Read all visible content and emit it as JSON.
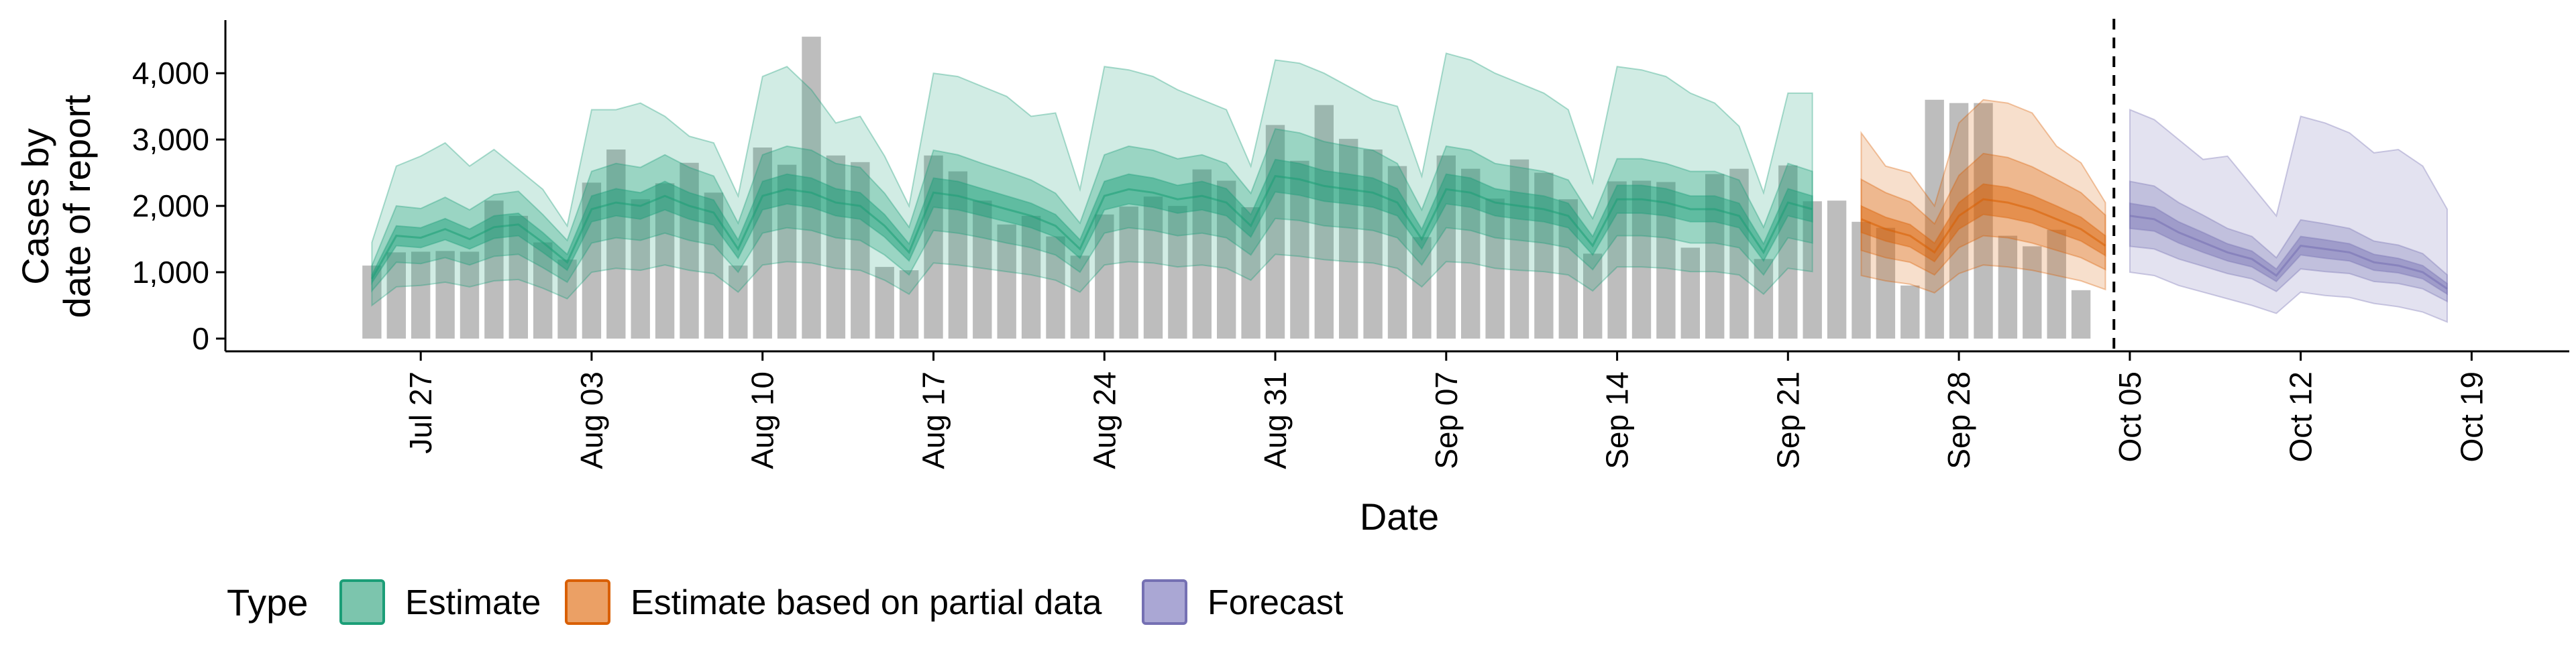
{
  "chart_data": {
    "type": "bar",
    "xlabel": "Date",
    "ylabel_lines": [
      "Cases by",
      "date of report"
    ],
    "ylim": [
      0,
      4800
    ],
    "xlim": [
      "2020-07-19",
      "2020-10-23"
    ],
    "y_ticks": [
      0,
      1000,
      2000,
      3000,
      4000
    ],
    "y_tick_labels": [
      "0",
      "1,000",
      "2,000",
      "3,000",
      "4,000"
    ],
    "x_ticks": [
      "2020-07-27",
      "2020-08-03",
      "2020-08-10",
      "2020-08-17",
      "2020-08-24",
      "2020-08-31",
      "2020-09-07",
      "2020-09-14",
      "2020-09-21",
      "2020-09-28",
      "2020-10-05",
      "2020-10-12",
      "2020-10-19"
    ],
    "x_tick_labels": [
      "Jul 27",
      "Aug 03",
      "Aug 10",
      "Aug 17",
      "Aug 24",
      "Aug 31",
      "Sep 07",
      "Sep 14",
      "Sep 21",
      "Sep 28",
      "Oct 05",
      "Oct 12",
      "Oct 19"
    ],
    "reference_date": "2020-10-04",
    "grid": false,
    "legend": {
      "title": "Type",
      "position": "bottom",
      "entries": [
        "Estimate",
        "Estimate based on partial data",
        "Forecast"
      ]
    },
    "colors": {
      "bar": "#bdbdbd",
      "estimate": "#1b9e77",
      "partial": "#d95f02",
      "forecast": "#7570b3"
    },
    "reported_cases": {
      "start_date": "2020-07-25",
      "values": [
        1100,
        1300,
        1310,
        1320,
        1310,
        2080,
        1850,
        1450,
        1190,
        2350,
        2850,
        2100,
        2340,
        2650,
        2200,
        1100,
        2880,
        2620,
        4550,
        2760,
        2660,
        1080,
        1030,
        2760,
        2520,
        2080,
        1720,
        1850,
        1540,
        1250,
        1870,
        1990,
        2140,
        2000,
        2550,
        2380,
        1980,
        3220,
        2680,
        3520,
        3010,
        2850,
        2600,
        1530,
        2760,
        2560,
        2110,
        2700,
        2500,
        2100,
        1280,
        2370,
        2380,
        2360,
        1370,
        2480,
        2560,
        1200,
        2610,
        2070,
        2080,
        1760,
        1670,
        800,
        3600,
        3550,
        3550,
        1550,
        1390,
        1640,
        730
      ]
    },
    "series": [
      {
        "name": "Estimate",
        "start_date": "2020-07-25",
        "median": [
          900,
          1550,
          1520,
          1650,
          1500,
          1680,
          1720,
          1450,
          1150,
          1950,
          2050,
          2000,
          2150,
          2000,
          1900,
          1350,
          2150,
          2250,
          2200,
          2050,
          2000,
          1700,
          1300,
          2200,
          2150,
          2050,
          1950,
          1850,
          1700,
          1350,
          2150,
          2250,
          2200,
          2100,
          2150,
          2050,
          1700,
          2450,
          2400,
          2300,
          2250,
          2200,
          2050,
          1500,
          2250,
          2200,
          2050,
          2000,
          1950,
          1850,
          1400,
          2100,
          2100,
          2050,
          1950,
          1950,
          1850,
          1300,
          2050,
          1950
        ],
        "low50": [
          840,
          1400,
          1370,
          1490,
          1350,
          1510,
          1550,
          1300,
          1030,
          1760,
          1850,
          1800,
          1940,
          1800,
          1710,
          1210,
          1940,
          2030,
          1980,
          1850,
          1800,
          1530,
          1170,
          1980,
          1940,
          1850,
          1760,
          1670,
          1530,
          1210,
          1940,
          2030,
          1980,
          1890,
          1940,
          1850,
          1530,
          2210,
          2160,
          2070,
          2030,
          1980,
          1850,
          1350,
          2030,
          1980,
          1850,
          1800,
          1760,
          1670,
          1260,
          1890,
          1890,
          1850,
          1760,
          1760,
          1670,
          1170,
          1850,
          1760
        ],
        "high50": [
          960,
          1700,
          1670,
          1810,
          1650,
          1850,
          1890,
          1600,
          1270,
          2150,
          2260,
          2200,
          2370,
          2200,
          2090,
          1490,
          2370,
          2480,
          2420,
          2260,
          2200,
          1870,
          1430,
          2420,
          2370,
          2260,
          2150,
          2040,
          1870,
          1490,
          2370,
          2480,
          2420,
          2310,
          2370,
          2260,
          1870,
          2700,
          2640,
          2530,
          2480,
          2420,
          2260,
          1650,
          2480,
          2420,
          2260,
          2200,
          2150,
          2040,
          1540,
          2310,
          2310,
          2260,
          2150,
          2150,
          2040,
          1430,
          2260,
          2150
        ],
        "low90": [
          720,
          1150,
          1130,
          1220,
          1110,
          1240,
          1270,
          1070,
          850,
          1440,
          1520,
          1480,
          1590,
          1480,
          1410,
          1000,
          1590,
          1670,
          1630,
          1520,
          1480,
          1260,
          960,
          1630,
          1590,
          1520,
          1440,
          1370,
          1260,
          1000,
          1590,
          1670,
          1630,
          1550,
          1590,
          1520,
          1260,
          1810,
          1780,
          1700,
          1670,
          1630,
          1520,
          1110,
          1670,
          1630,
          1520,
          1480,
          1440,
          1370,
          1040,
          1550,
          1550,
          1520,
          1440,
          1440,
          1370,
          960,
          1520,
          1440
        ],
        "high90": [
          1100,
          2000,
          1960,
          2130,
          1940,
          2170,
          2220,
          1870,
          1480,
          2520,
          2640,
          2580,
          2770,
          2580,
          2450,
          1740,
          2770,
          2900,
          2840,
          2640,
          2580,
          2190,
          1680,
          2840,
          2770,
          2640,
          2520,
          2390,
          2190,
          1740,
          2770,
          2900,
          2840,
          2710,
          2770,
          2640,
          2190,
          3160,
          3100,
          2970,
          2900,
          2840,
          2640,
          1940,
          2900,
          2840,
          2640,
          2580,
          2520,
          2390,
          1810,
          2710,
          2710,
          2640,
          2520,
          2520,
          2390,
          1680,
          2640,
          2520
        ],
        "low_outer": [
          500,
          780,
          800,
          850,
          780,
          870,
          890,
          760,
          600,
          1000,
          1060,
          1030,
          1110,
          1030,
          980,
          700,
          1110,
          1160,
          1140,
          1060,
          1030,
          880,
          670,
          1140,
          1110,
          1060,
          1010,
          960,
          880,
          700,
          1110,
          1160,
          1140,
          1080,
          1110,
          1060,
          880,
          1270,
          1240,
          1190,
          1160,
          1140,
          1060,
          780,
          1160,
          1140,
          1060,
          1030,
          1010,
          960,
          720,
          1080,
          1080,
          1060,
          1010,
          1010,
          960,
          670,
          1060,
          1010
        ],
        "high_outer": [
          1450,
          2600,
          2750,
          2950,
          2600,
          2850,
          2550,
          2250,
          1700,
          3450,
          3450,
          3550,
          3350,
          3050,
          2950,
          2150,
          3950,
          4100,
          3750,
          3250,
          3350,
          2750,
          2000,
          4000,
          3950,
          3800,
          3650,
          3350,
          3400,
          2250,
          4100,
          4050,
          3950,
          3750,
          3600,
          3450,
          2600,
          4200,
          4150,
          4000,
          3800,
          3600,
          3500,
          2450,
          4300,
          4200,
          4000,
          3850,
          3700,
          3450,
          2350,
          4100,
          4050,
          3950,
          3700,
          3550,
          3200,
          2200,
          3700,
          3700
        ]
      },
      {
        "name": "Estimate based on partial data",
        "start_date": "2020-09-24",
        "median": [
          1800,
          1650,
          1550,
          1300,
          1850,
          2100,
          2050,
          1950,
          1800,
          1650,
          1400
        ],
        "low50": [
          1600,
          1470,
          1380,
          1160,
          1650,
          1870,
          1820,
          1740,
          1600,
          1470,
          1250
        ],
        "high50": [
          2000,
          1830,
          1720,
          1440,
          2050,
          2330,
          2280,
          2160,
          2000,
          1830,
          1550
        ],
        "low90": [
          1330,
          1220,
          1150,
          960,
          1370,
          1550,
          1520,
          1440,
          1330,
          1220,
          1040
        ],
        "high90": [
          2400,
          2200,
          2060,
          1730,
          2460,
          2790,
          2730,
          2590,
          2400,
          2200,
          1860
        ],
        "low_outer": [
          950,
          870,
          820,
          690,
          980,
          1110,
          1080,
          1030,
          950,
          870,
          740
        ],
        "high_outer": [
          3100,
          2600,
          2500,
          2000,
          3250,
          3600,
          3550,
          3400,
          2900,
          2650,
          2050
        ]
      },
      {
        "name": "Forecast",
        "start_date": "2020-10-05",
        "median": [
          1850,
          1800,
          1600,
          1450,
          1300,
          1200,
          950,
          1400,
          1350,
          1300,
          1150,
          1100,
          1000,
          750
        ],
        "low50": [
          1660,
          1620,
          1440,
          1300,
          1170,
          1080,
          860,
          1260,
          1210,
          1170,
          1030,
          990,
          900,
          670
        ],
        "high50": [
          2040,
          1980,
          1760,
          1600,
          1430,
          1320,
          1050,
          1540,
          1490,
          1430,
          1270,
          1210,
          1100,
          830
        ],
        "low90": [
          1390,
          1350,
          1200,
          1090,
          980,
          900,
          710,
          1050,
          1010,
          980,
          860,
          830,
          750,
          560
        ],
        "high90": [
          2370,
          2300,
          2050,
          1860,
          1660,
          1540,
          1220,
          1790,
          1730,
          1660,
          1470,
          1410,
          1280,
          960
        ],
        "low_outer": [
          1000,
          950,
          800,
          700,
          600,
          500,
          380,
          700,
          650,
          620,
          530,
          480,
          400,
          250
        ],
        "high_outer": [
          3450,
          3300,
          3000,
          2700,
          2750,
          2300,
          1850,
          3350,
          3250,
          3100,
          2800,
          2850,
          2600,
          1950
        ]
      }
    ]
  }
}
